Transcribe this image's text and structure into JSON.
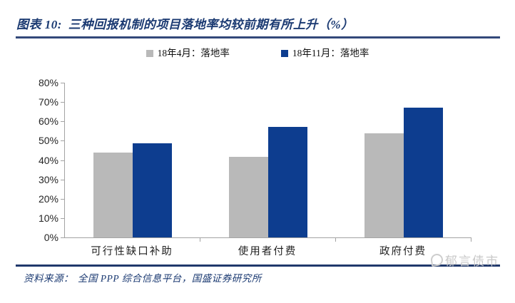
{
  "figure": {
    "label": "图表 10:",
    "title": "三种回报机制的项目落地率均较前期有所上升（%）",
    "source_label": "资料来源：",
    "source": "全国 PPP 综合信息平台，国盛证券研究所",
    "watermark": "郁言债市"
  },
  "chart_data": {
    "type": "bar",
    "categories": [
      "可行性缺口补助",
      "使用者付费",
      "政府付费"
    ],
    "series": [
      {
        "name": "18年4月：落地率",
        "color": "#b9b9b9",
        "values": [
          44,
          41.5,
          54
        ]
      },
      {
        "name": "18年11月：落地率",
        "color": "#0d3d8f",
        "values": [
          48.5,
          57,
          67
        ]
      }
    ],
    "title": "三种回报机制的项目落地率均较前期有所上升（%）",
    "xlabel": "",
    "ylabel": "",
    "ylim": [
      0,
      80
    ],
    "ytick_step": 10,
    "ytick_labels": [
      "80%",
      "70%",
      "60%",
      "50%",
      "40%",
      "30%",
      "20%",
      "10%",
      "0%"
    ],
    "grid": false,
    "legend_position": "top"
  },
  "colors": {
    "title_navy": "#1b3a72",
    "rule_top": "#33497a",
    "rule_bottom": "#20386b",
    "axis_gray": "#a3a3a3",
    "bar_gray": "#b9b9b9",
    "bar_blue": "#0d3d8f",
    "watermark_gray": "#c9c9c9"
  }
}
